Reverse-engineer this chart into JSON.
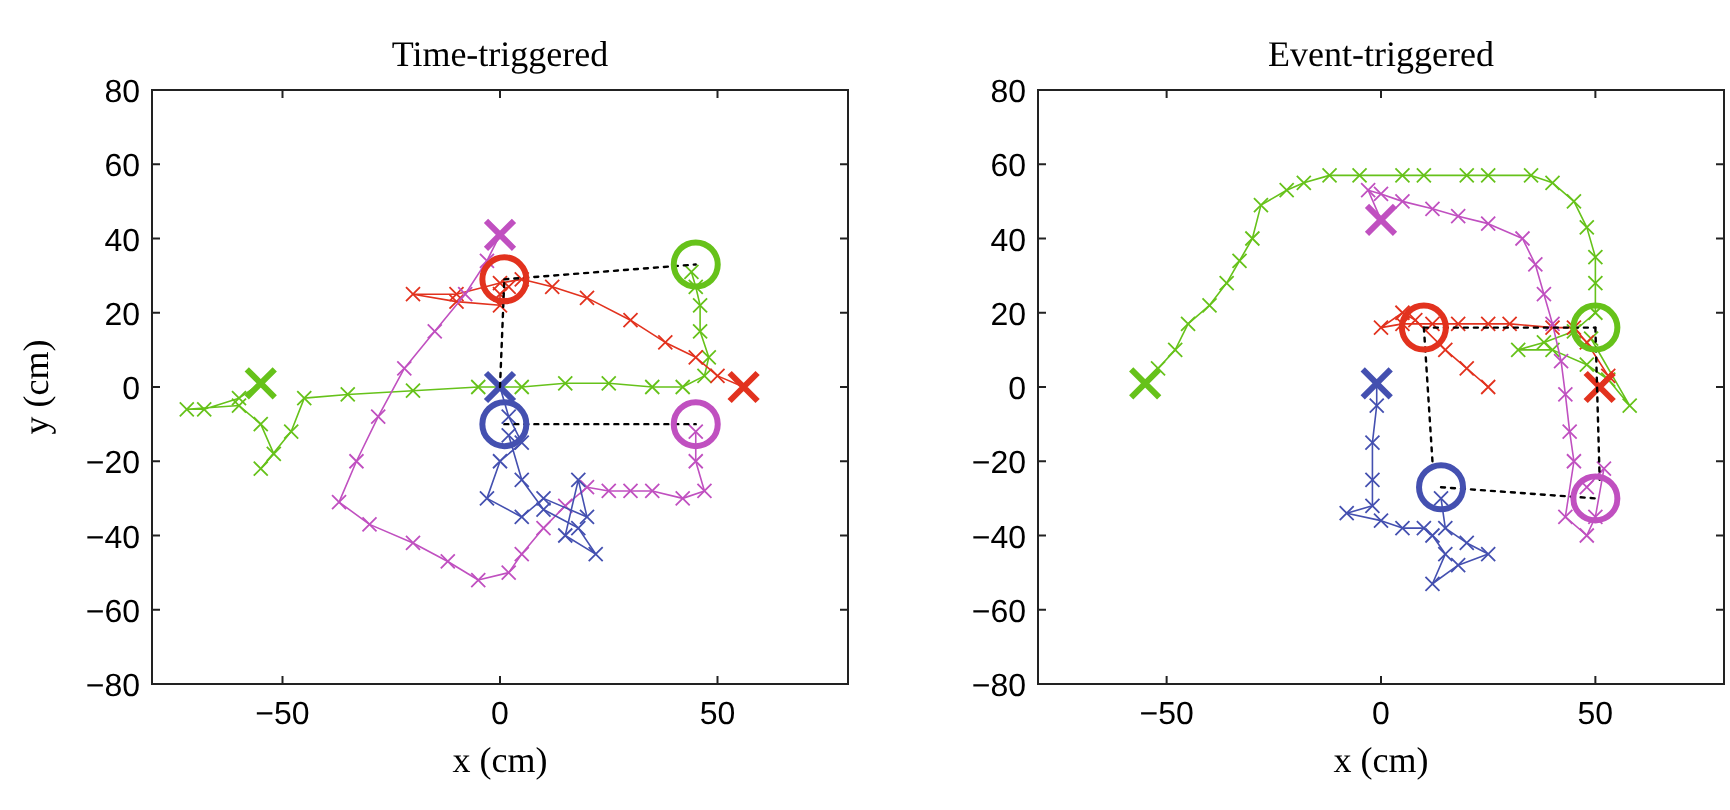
{
  "chart_data": [
    {
      "type": "line",
      "title": "Time-triggered",
      "xlabel": "x (cm)",
      "ylabel": "y (cm)",
      "xlim": [
        -80,
        80
      ],
      "ylim": [
        -80,
        80
      ],
      "xticks": [
        -50,
        0,
        50
      ],
      "yticks": [
        -80,
        -60,
        -40,
        -20,
        0,
        20,
        40,
        60,
        80
      ],
      "marker": "cross",
      "series": [
        {
          "color": "#66c21a",
          "x": [
            -55,
            -60,
            -68,
            -72,
            -60,
            -55,
            -52,
            -55,
            -48,
            -45,
            -35,
            -20,
            -5,
            5,
            15,
            25,
            35,
            42,
            47,
            48,
            46,
            46,
            45,
            44
          ],
          "values": [
            1,
            -3,
            -6,
            -6,
            -5,
            -10,
            -18,
            -22,
            -12,
            -3,
            -2,
            -1,
            0,
            0,
            1,
            1,
            0,
            0,
            3,
            8,
            15,
            22,
            27,
            31
          ]
        },
        {
          "color": "#e2321e",
          "x": [
            56,
            50,
            45,
            38,
            30,
            20,
            12,
            5,
            0,
            -10,
            -20,
            -10,
            0,
            0,
            2
          ],
          "values": [
            0,
            3,
            8,
            12,
            18,
            24,
            27,
            29,
            28,
            25,
            25,
            23,
            22,
            25,
            27
          ]
        },
        {
          "color": "#c050c0",
          "x": [
            0,
            -3,
            -8,
            -15,
            -22,
            -28,
            -33,
            -37,
            -30,
            -20,
            -12,
            -5,
            2,
            5,
            10,
            15,
            20,
            25,
            30,
            35,
            42,
            47,
            45,
            45
          ],
          "values": [
            41,
            34,
            25,
            15,
            5,
            -8,
            -20,
            -31,
            -37,
            -42,
            -47,
            -52,
            -50,
            -45,
            -38,
            -32,
            -27,
            -28,
            -28,
            -28,
            -30,
            -28,
            -20,
            -12
          ]
        },
        {
          "color": "#4450b0",
          "x": [
            0,
            2,
            5,
            0,
            -3,
            5,
            10,
            20,
            18,
            15,
            22,
            18,
            10,
            5,
            2
          ],
          "values": [
            0,
            -8,
            -15,
            -20,
            -30,
            -35,
            -30,
            -35,
            -25,
            -40,
            -45,
            -38,
            -33,
            -25,
            -13
          ]
        },
        {
          "type": "scatter",
          "marker": "cross",
          "color": "#66c21a",
          "x": [
            -55
          ],
          "values": [
            1
          ]
        },
        {
          "type": "scatter",
          "marker": "cross",
          "color": "#e2321e",
          "x": [
            56
          ],
          "values": [
            0
          ]
        },
        {
          "type": "scatter",
          "marker": "cross",
          "color": "#c050c0",
          "x": [
            0
          ],
          "values": [
            41
          ]
        },
        {
          "type": "scatter",
          "marker": "cross",
          "color": "#4450b0",
          "x": [
            0
          ],
          "values": [
            0
          ]
        },
        {
          "type": "line",
          "line_style": "dotted",
          "marker": "none",
          "color": "#000000",
          "x": [
            1,
            45
          ],
          "values": [
            29,
            33
          ]
        },
        {
          "type": "line",
          "line_style": "dotted",
          "marker": "none",
          "color": "#000000",
          "x": [
            1,
            45
          ],
          "values": [
            -10,
            -10
          ]
        },
        {
          "type": "line",
          "line_style": "dotted",
          "marker": "none",
          "color": "#000000",
          "x": [
            0,
            1
          ],
          "values": [
            0,
            29
          ]
        },
        {
          "type": "scatter",
          "marker": "circle",
          "color": "#66c21a",
          "x": [
            45
          ],
          "values": [
            33
          ]
        },
        {
          "type": "scatter",
          "marker": "circle",
          "color": "#e2321e",
          "x": [
            1
          ],
          "values": [
            29
          ]
        },
        {
          "type": "scatter",
          "marker": "circle",
          "color": "#c050c0",
          "x": [
            45
          ],
          "values": [
            -10
          ]
        },
        {
          "type": "scatter",
          "marker": "circle",
          "color": "#4450b0",
          "x": [
            1
          ],
          "values": [
            -10
          ]
        }
      ]
    },
    {
      "type": "line",
      "title": "Event-triggered",
      "xlabel": "x (cm)",
      "xlim": [
        -80,
        80
      ],
      "ylim": [
        -80,
        80
      ],
      "xticks": [
        -50,
        0,
        50
      ],
      "yticks": [
        -80,
        -60,
        -40,
        -20,
        0,
        20,
        40,
        60,
        80
      ],
      "marker": "cross",
      "series": [
        {
          "color": "#66c21a",
          "x": [
            -55,
            -52,
            -48,
            -45,
            -40,
            -36,
            -33,
            -30,
            -28,
            -22,
            -18,
            -12,
            -5,
            5,
            10,
            20,
            25,
            35,
            40,
            45,
            48,
            50,
            50,
            50,
            45,
            38,
            32,
            40,
            48,
            53,
            58,
            49
          ],
          "values": [
            1,
            5,
            10,
            17,
            22,
            28,
            34,
            40,
            49,
            53,
            55,
            57,
            57,
            57,
            57,
            57,
            57,
            57,
            55,
            50,
            43,
            35,
            28,
            20,
            15,
            12,
            10,
            10,
            6,
            2,
            -5,
            13
          ]
        },
        {
          "color": "#e2321e",
          "x": [
            51,
            53,
            48,
            45,
            40,
            30,
            25,
            18,
            12,
            5,
            0,
            5,
            8,
            15,
            20,
            25
          ],
          "values": [
            0,
            3,
            12,
            16,
            16,
            17,
            17,
            17,
            17,
            17,
            16,
            20,
            18,
            10,
            5,
            0
          ]
        },
        {
          "color": "#c050c0",
          "x": [
            0,
            -3,
            0,
            5,
            12,
            18,
            25,
            33,
            36,
            38,
            40,
            42,
            43,
            44,
            45,
            43,
            48,
            50,
            52,
            48
          ],
          "values": [
            45,
            53,
            52,
            50,
            48,
            46,
            44,
            40,
            33,
            25,
            17,
            7,
            -2,
            -12,
            -20,
            -35,
            -40,
            -35,
            -22,
            -27
          ]
        },
        {
          "color": "#4450b0",
          "x": [
            -1,
            -1,
            -2,
            -2,
            -2,
            -8,
            0,
            5,
            10,
            12,
            15,
            12,
            18,
            25,
            20,
            15,
            14
          ],
          "values": [
            1,
            -5,
            -15,
            -25,
            -32,
            -34,
            -36,
            -38,
            -38,
            -40,
            -45,
            -53,
            -48,
            -45,
            -42,
            -38,
            -30
          ]
        },
        {
          "type": "scatter",
          "marker": "cross",
          "color": "#66c21a",
          "x": [
            -55
          ],
          "values": [
            1
          ]
        },
        {
          "type": "scatter",
          "marker": "cross",
          "color": "#e2321e",
          "x": [
            51
          ],
          "values": [
            0
          ]
        },
        {
          "type": "scatter",
          "marker": "cross",
          "color": "#c050c0",
          "x": [
            0
          ],
          "values": [
            45
          ]
        },
        {
          "type": "scatter",
          "marker": "cross",
          "color": "#4450b0",
          "x": [
            -1
          ],
          "values": [
            1
          ]
        },
        {
          "type": "line",
          "line_style": "dotted",
          "marker": "none",
          "color": "#000000",
          "x": [
            10,
            50
          ],
          "values": [
            16,
            16
          ]
        },
        {
          "type": "line",
          "line_style": "dotted",
          "marker": "none",
          "color": "#000000",
          "x": [
            14,
            50
          ],
          "values": [
            -27,
            -30
          ]
        },
        {
          "type": "line",
          "line_style": "dotted",
          "marker": "none",
          "color": "#000000",
          "x": [
            10,
            12
          ],
          "values": [
            16,
            -20
          ]
        },
        {
          "type": "line",
          "line_style": "dotted",
          "marker": "none",
          "color": "#000000",
          "x": [
            50,
            51
          ],
          "values": [
            16,
            -25
          ]
        },
        {
          "type": "scatter",
          "marker": "circle",
          "color": "#66c21a",
          "x": [
            50
          ],
          "values": [
            16
          ]
        },
        {
          "type": "scatter",
          "marker": "circle",
          "color": "#e2321e",
          "x": [
            10
          ],
          "values": [
            16
          ]
        },
        {
          "type": "scatter",
          "marker": "circle",
          "color": "#c050c0",
          "x": [
            50
          ],
          "values": [
            -30
          ]
        },
        {
          "type": "scatter",
          "marker": "circle",
          "color": "#4450b0",
          "x": [
            14
          ],
          "values": [
            -27
          ]
        }
      ]
    }
  ]
}
